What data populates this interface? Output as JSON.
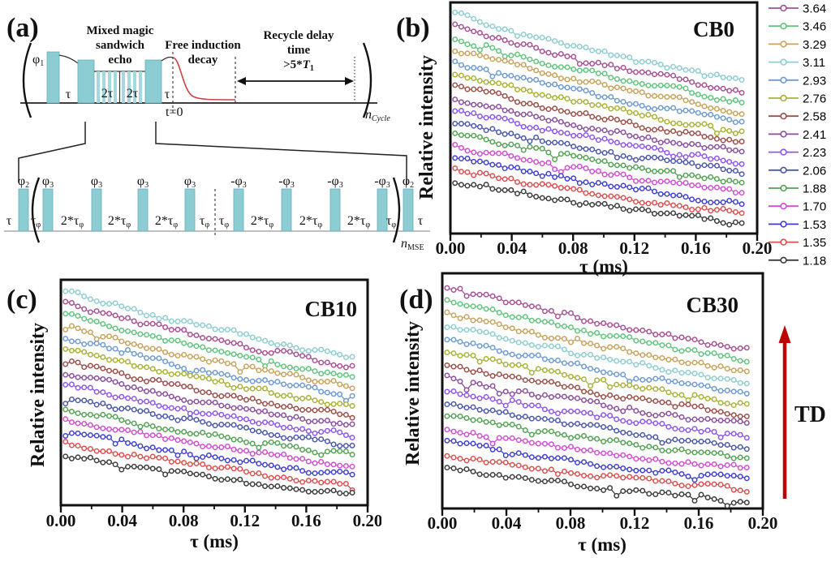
{
  "panel_a": {
    "tag": "(a)",
    "mse_title": [
      "Mixed magic",
      "sandwich",
      "echo"
    ],
    "fid_title": [
      "Free induction",
      "decay"
    ],
    "recycle_title": [
      "Recycle delay",
      "time"
    ],
    "recycle_condition": {
      "pre": ">5*",
      "var": "T",
      "sub": "1"
    },
    "t0_label": "t=0",
    "n_cycle": {
      "main": "n",
      "sub": "Cycle"
    },
    "n_mse": {
      "main": "n",
      "sub": "MSE"
    },
    "top_row": {
      "phi1": {
        "main": "φ",
        "sub": "1"
      },
      "tau": "τ",
      "two_tau": "2τ"
    },
    "bottom_row": {
      "tau": "τ",
      "tau_phi": {
        "main": "τ",
        "sub": "φ"
      },
      "two_tau_phi": {
        "main": "2*τ",
        "sub": "φ"
      },
      "phi2": {
        "main": "φ",
        "sub": "2"
      },
      "phi3": {
        "main": "φ",
        "sub": "3"
      },
      "neg_phi3": {
        "main": "-φ",
        "sub": "3"
      }
    },
    "pulse_color": "#8ccdd4"
  },
  "legend": {
    "items": [
      {
        "label": "3.64",
        "color": "#a85094"
      },
      {
        "label": "3.46",
        "color": "#62c47e"
      },
      {
        "label": "3.29",
        "color": "#c7a35c"
      },
      {
        "label": "3.11",
        "color": "#8fcdd1"
      },
      {
        "label": "2.93",
        "color": "#6e9bd1"
      },
      {
        "label": "2.76",
        "color": "#a9b237"
      },
      {
        "label": "2.58",
        "color": "#9c4f49"
      },
      {
        "label": "2.41",
        "color": "#8a4f9e"
      },
      {
        "label": "2.23",
        "color": "#8f57ee"
      },
      {
        "label": "2.06",
        "color": "#4b58aa"
      },
      {
        "label": "1.88",
        "color": "#55a255"
      },
      {
        "label": "1.70",
        "color": "#d14fd1"
      },
      {
        "label": "1.53",
        "color": "#4040d0"
      },
      {
        "label": "1.35",
        "color": "#dd5050"
      },
      {
        "label": "1.18",
        "color": "#3c3c3c"
      }
    ]
  },
  "td_annotation": {
    "label": "TD",
    "color": "#c00000"
  },
  "chart_data": [
    {
      "id": "b",
      "type": "line",
      "panel_tag": "(b)",
      "title": "CB0",
      "xlabel": "τ (ms)",
      "ylabel": "Relative intensity",
      "x_ticks": [
        "0.00",
        "0.04",
        "0.08",
        "0.12",
        "0.16",
        "0.20"
      ],
      "x_range_ms": [
        0,
        0.2
      ],
      "tau_first_ms": 0.003,
      "tau_last_ms": 0.19,
      "n_points": 47,
      "noise_frac": 0.012,
      "seed": 11,
      "note": "15 stacked noisy MSE decay trains; start/drop are fractions of plot height read from the figure",
      "series": [
        {
          "label": "3.11",
          "color": "#8fcdd1",
          "start": 0.05,
          "drop": 0.29
        },
        {
          "label": "3.64",
          "color": "#a85094",
          "start": 0.102,
          "drop": 0.282
        },
        {
          "label": "3.46",
          "color": "#62c47e",
          "start": 0.154,
          "drop": 0.274
        },
        {
          "label": "3.29",
          "color": "#c7a35c",
          "start": 0.205,
          "drop": 0.266
        },
        {
          "label": "2.93",
          "color": "#6e9bd1",
          "start": 0.257,
          "drop": 0.259
        },
        {
          "label": "2.76",
          "color": "#a9b237",
          "start": 0.309,
          "drop": 0.251
        },
        {
          "label": "2.58",
          "color": "#9c4f49",
          "start": 0.361,
          "drop": 0.243
        },
        {
          "label": "2.41",
          "color": "#8a4f9e",
          "start": 0.413,
          "drop": 0.235
        },
        {
          "label": "2.23",
          "color": "#8f57ee",
          "start": 0.464,
          "drop": 0.227
        },
        {
          "label": "2.06",
          "color": "#4b58aa",
          "start": 0.516,
          "drop": 0.219
        },
        {
          "label": "1.88",
          "color": "#55a255",
          "start": 0.568,
          "drop": 0.211
        },
        {
          "label": "1.70",
          "color": "#d14fd1",
          "start": 0.62,
          "drop": 0.204
        },
        {
          "label": "1.53",
          "color": "#4040d0",
          "start": 0.672,
          "drop": 0.196
        },
        {
          "label": "1.35",
          "color": "#dd5050",
          "start": 0.723,
          "drop": 0.188
        },
        {
          "label": "1.18",
          "color": "#3c3c3c",
          "start": 0.775,
          "drop": 0.18
        }
      ]
    },
    {
      "id": "c",
      "type": "line",
      "panel_tag": "(c)",
      "title": "CB10",
      "xlabel": "τ (ms)",
      "ylabel": "Relative intensity",
      "x_ticks": [
        "0.00",
        "0.04",
        "0.08",
        "0.12",
        "0.16",
        "0.20"
      ],
      "x_range_ms": [
        0,
        0.2
      ],
      "tau_first_ms": 0.003,
      "tau_last_ms": 0.19,
      "n_points": 47,
      "noise_frac": 0.012,
      "seed": 22,
      "series": [
        {
          "label": "3.11",
          "color": "#8fcdd1",
          "start": 0.05,
          "drop": 0.29
        },
        {
          "label": "3.64",
          "color": "#a85094",
          "start": 0.102,
          "drop": 0.282
        },
        {
          "label": "3.46",
          "color": "#62c47e",
          "start": 0.154,
          "drop": 0.274
        },
        {
          "label": "3.29",
          "color": "#c7a35c",
          "start": 0.205,
          "drop": 0.266
        },
        {
          "label": "2.93",
          "color": "#6e9bd1",
          "start": 0.257,
          "drop": 0.259
        },
        {
          "label": "2.76",
          "color": "#a9b237",
          "start": 0.309,
          "drop": 0.251
        },
        {
          "label": "2.58",
          "color": "#9c4f49",
          "start": 0.361,
          "drop": 0.243
        },
        {
          "label": "2.41",
          "color": "#8a4f9e",
          "start": 0.413,
          "drop": 0.235
        },
        {
          "label": "2.23",
          "color": "#8f57ee",
          "start": 0.464,
          "drop": 0.227
        },
        {
          "label": "2.06",
          "color": "#4b58aa",
          "start": 0.516,
          "drop": 0.219
        },
        {
          "label": "1.88",
          "color": "#55a255",
          "start": 0.568,
          "drop": 0.211
        },
        {
          "label": "1.70",
          "color": "#d14fd1",
          "start": 0.62,
          "drop": 0.204
        },
        {
          "label": "1.53",
          "color": "#4040d0",
          "start": 0.672,
          "drop": 0.196
        },
        {
          "label": "1.35",
          "color": "#dd5050",
          "start": 0.723,
          "drop": 0.188
        },
        {
          "label": "1.18",
          "color": "#3c3c3c",
          "start": 0.775,
          "drop": 0.18
        }
      ]
    },
    {
      "id": "d",
      "type": "line",
      "panel_tag": "(d)",
      "title": "CB30",
      "xlabel": "τ (ms)",
      "ylabel": "Relative intensity",
      "x_ticks": [
        "0.00",
        "0.04",
        "0.08",
        "0.12",
        "0.16",
        "0.20"
      ],
      "x_range_ms": [
        0,
        0.2
      ],
      "tau_first_ms": 0.003,
      "tau_last_ms": 0.19,
      "n_points": 47,
      "noise_frac": 0.012,
      "seed": 33,
      "series": [
        {
          "label": "3.64",
          "color": "#a85094",
          "start": 0.055,
          "drop": 0.27
        },
        {
          "label": "3.46",
          "color": "#62c47e",
          "start": 0.11,
          "drop": 0.261
        },
        {
          "label": "3.29",
          "color": "#c7a35c",
          "start": 0.166,
          "drop": 0.251
        },
        {
          "label": "3.11",
          "color": "#8fcdd1",
          "start": 0.221,
          "drop": 0.242
        },
        {
          "label": "2.93",
          "color": "#6e9bd1",
          "start": 0.276,
          "drop": 0.233
        },
        {
          "label": "2.76",
          "color": "#a9b237",
          "start": 0.332,
          "drop": 0.224
        },
        {
          "label": "2.58",
          "color": "#9c4f49",
          "start": 0.387,
          "drop": 0.214
        },
        {
          "label": "2.41",
          "color": "#8a4f9e",
          "start": 0.443,
          "drop": 0.205
        },
        {
          "label": "2.23",
          "color": "#8f57ee",
          "start": 0.498,
          "drop": 0.196
        },
        {
          "label": "2.06",
          "color": "#4b58aa",
          "start": 0.553,
          "drop": 0.186
        },
        {
          "label": "1.88",
          "color": "#55a255",
          "start": 0.609,
          "drop": 0.177
        },
        {
          "label": "1.70",
          "color": "#d14fd1",
          "start": 0.664,
          "drop": 0.168
        },
        {
          "label": "1.53",
          "color": "#4040d0",
          "start": 0.72,
          "drop": 0.158
        },
        {
          "label": "1.35",
          "color": "#dd5050",
          "start": 0.775,
          "drop": 0.149
        },
        {
          "label": "1.18",
          "color": "#3c3c3c",
          "start": 0.83,
          "drop": 0.14
        }
      ]
    }
  ]
}
